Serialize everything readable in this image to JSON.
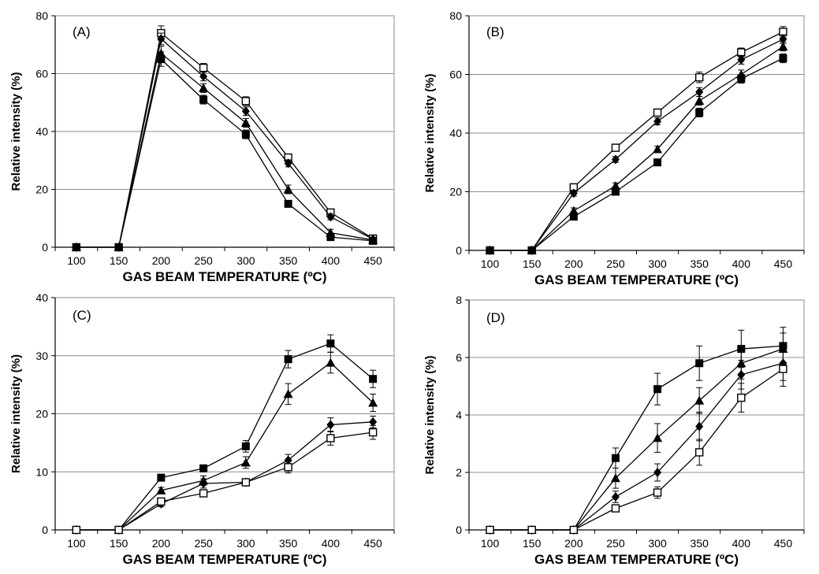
{
  "figure": {
    "x_values": [
      100,
      150,
      200,
      250,
      300,
      350,
      400,
      450
    ],
    "x_ticks": [
      "100",
      "150",
      "200",
      "250",
      "300",
      "350",
      "400",
      "450"
    ]
  },
  "chart_data": [
    {
      "type": "line",
      "panel_label": "(A)",
      "xlabel": "GAS BEAM TEMPERATURE (ºC)",
      "ylabel": "Relative intensity (%)",
      "ylim": [
        0,
        80
      ],
      "y_ticks": [
        "0",
        "20",
        "40",
        "60",
        "80"
      ],
      "grid": true,
      "series": [
        {
          "marker": "open-square",
          "values": [
            0,
            0,
            74,
            62,
            50.5,
            31,
            12,
            3
          ],
          "errors": [
            0,
            0,
            2.5,
            1.5,
            1.5,
            1.2,
            1.2,
            0.5
          ]
        },
        {
          "marker": "diamond",
          "values": [
            0,
            0,
            72,
            59,
            47,
            29,
            10.5,
            2.8
          ],
          "errors": [
            0,
            0,
            2,
            1.5,
            1.5,
            1.2,
            1,
            0.5
          ]
        },
        {
          "marker": "triangle",
          "values": [
            0,
            0,
            67,
            55,
            43,
            20,
            5,
            2.5
          ],
          "errors": [
            0,
            0,
            2.5,
            1.5,
            1.5,
            1.5,
            1.2,
            0.5
          ]
        },
        {
          "marker": "filled-square",
          "values": [
            0,
            0,
            65,
            51,
            39,
            15,
            3.5,
            2.2
          ],
          "errors": [
            0,
            0,
            2.5,
            1.5,
            1.5,
            1,
            1,
            0.5
          ]
        }
      ]
    },
    {
      "type": "line",
      "panel_label": "(B)",
      "xlabel": "GAS BEAM TEMPERATURE (ºC)",
      "ylabel": "Relative intensity (%)",
      "ylim": [
        0,
        80
      ],
      "y_ticks": [
        "0",
        "20",
        "40",
        "60",
        "80"
      ],
      "grid": true,
      "series": [
        {
          "marker": "open-square",
          "values": [
            0,
            0,
            21.5,
            35,
            47,
            59,
            67.5,
            74.5
          ],
          "errors": [
            0,
            0,
            1,
            1,
            1.2,
            1.8,
            1.5,
            1.8
          ]
        },
        {
          "marker": "diamond",
          "values": [
            0,
            0,
            19.5,
            31,
            44,
            54,
            65,
            72
          ],
          "errors": [
            0,
            0,
            1,
            1,
            1.2,
            1.5,
            1.5,
            1.5
          ]
        },
        {
          "marker": "triangle",
          "values": [
            0,
            0,
            13.5,
            22,
            34.5,
            51,
            60,
            69.5
          ],
          "errors": [
            0,
            0,
            1,
            1,
            1,
            1.5,
            1.5,
            1.5
          ]
        },
        {
          "marker": "filled-square",
          "values": [
            0,
            0,
            11.5,
            20,
            30,
            47,
            58.5,
            65.5
          ],
          "errors": [
            0,
            0,
            1,
            1,
            1,
            1.5,
            1.5,
            1.5
          ]
        }
      ]
    },
    {
      "type": "line",
      "panel_label": "(C)",
      "xlabel": "GAS BEAM TEMPERATURE (ºC)",
      "ylabel": "Relative intensity (%)",
      "ylim": [
        0,
        40
      ],
      "y_ticks": [
        "0",
        "10",
        "20",
        "30",
        "40"
      ],
      "grid": true,
      "series": [
        {
          "marker": "filled-square",
          "values": [
            0,
            0,
            9,
            10.6,
            14.4,
            29.4,
            32.1,
            26
          ],
          "errors": [
            0,
            0,
            0.5,
            0.6,
            1,
            1.5,
            1.5,
            1.5
          ]
        },
        {
          "marker": "triangle",
          "values": [
            0,
            0,
            6.8,
            8.5,
            11.6,
            23.4,
            28.8,
            21.9
          ],
          "errors": [
            0,
            0,
            0.5,
            0.8,
            1,
            1.8,
            1.8,
            1.5
          ]
        },
        {
          "marker": "diamond",
          "values": [
            0,
            0,
            4.5,
            8,
            8.2,
            12,
            18.1,
            18.6
          ],
          "errors": [
            0,
            0,
            0.5,
            0.8,
            0.6,
            1,
            1.2,
            1
          ]
        },
        {
          "marker": "open-square",
          "values": [
            0,
            0,
            4.9,
            6.3,
            8.2,
            10.8,
            15.8,
            16.8
          ],
          "errors": [
            0,
            0,
            0.5,
            0.6,
            0.6,
            1,
            1.2,
            1.2
          ]
        }
      ]
    },
    {
      "type": "line",
      "panel_label": "(D)",
      "xlabel": "GAS BEAM TEMPERATURE (ºC)",
      "ylabel": "Relative intensity (%)",
      "ylim": [
        0,
        8
      ],
      "y_ticks": [
        "0",
        "2",
        "4",
        "6",
        "8"
      ],
      "grid": true,
      "series": [
        {
          "marker": "filled-square",
          "values": [
            0,
            0,
            0,
            2.5,
            4.9,
            5.8,
            6.3,
            6.4
          ],
          "errors": [
            0,
            0,
            0,
            0.35,
            0.55,
            0.6,
            0.65,
            0.65
          ]
        },
        {
          "marker": "triangle",
          "values": [
            0,
            0,
            0,
            1.8,
            3.2,
            4.5,
            5.8,
            6.3
          ],
          "errors": [
            0,
            0,
            0,
            0.35,
            0.5,
            0.45,
            0.55,
            0.55
          ]
        },
        {
          "marker": "diamond",
          "values": [
            0,
            0,
            0,
            1.15,
            2,
            3.6,
            5.4,
            5.8
          ],
          "errors": [
            0,
            0,
            0,
            0.2,
            0.3,
            0.5,
            0.5,
            0.6
          ]
        },
        {
          "marker": "open-square",
          "values": [
            0,
            0,
            0,
            0.75,
            1.3,
            2.7,
            4.6,
            5.6
          ],
          "errors": [
            0,
            0,
            0,
            0.1,
            0.2,
            0.45,
            0.5,
            0.6
          ]
        }
      ]
    }
  ]
}
